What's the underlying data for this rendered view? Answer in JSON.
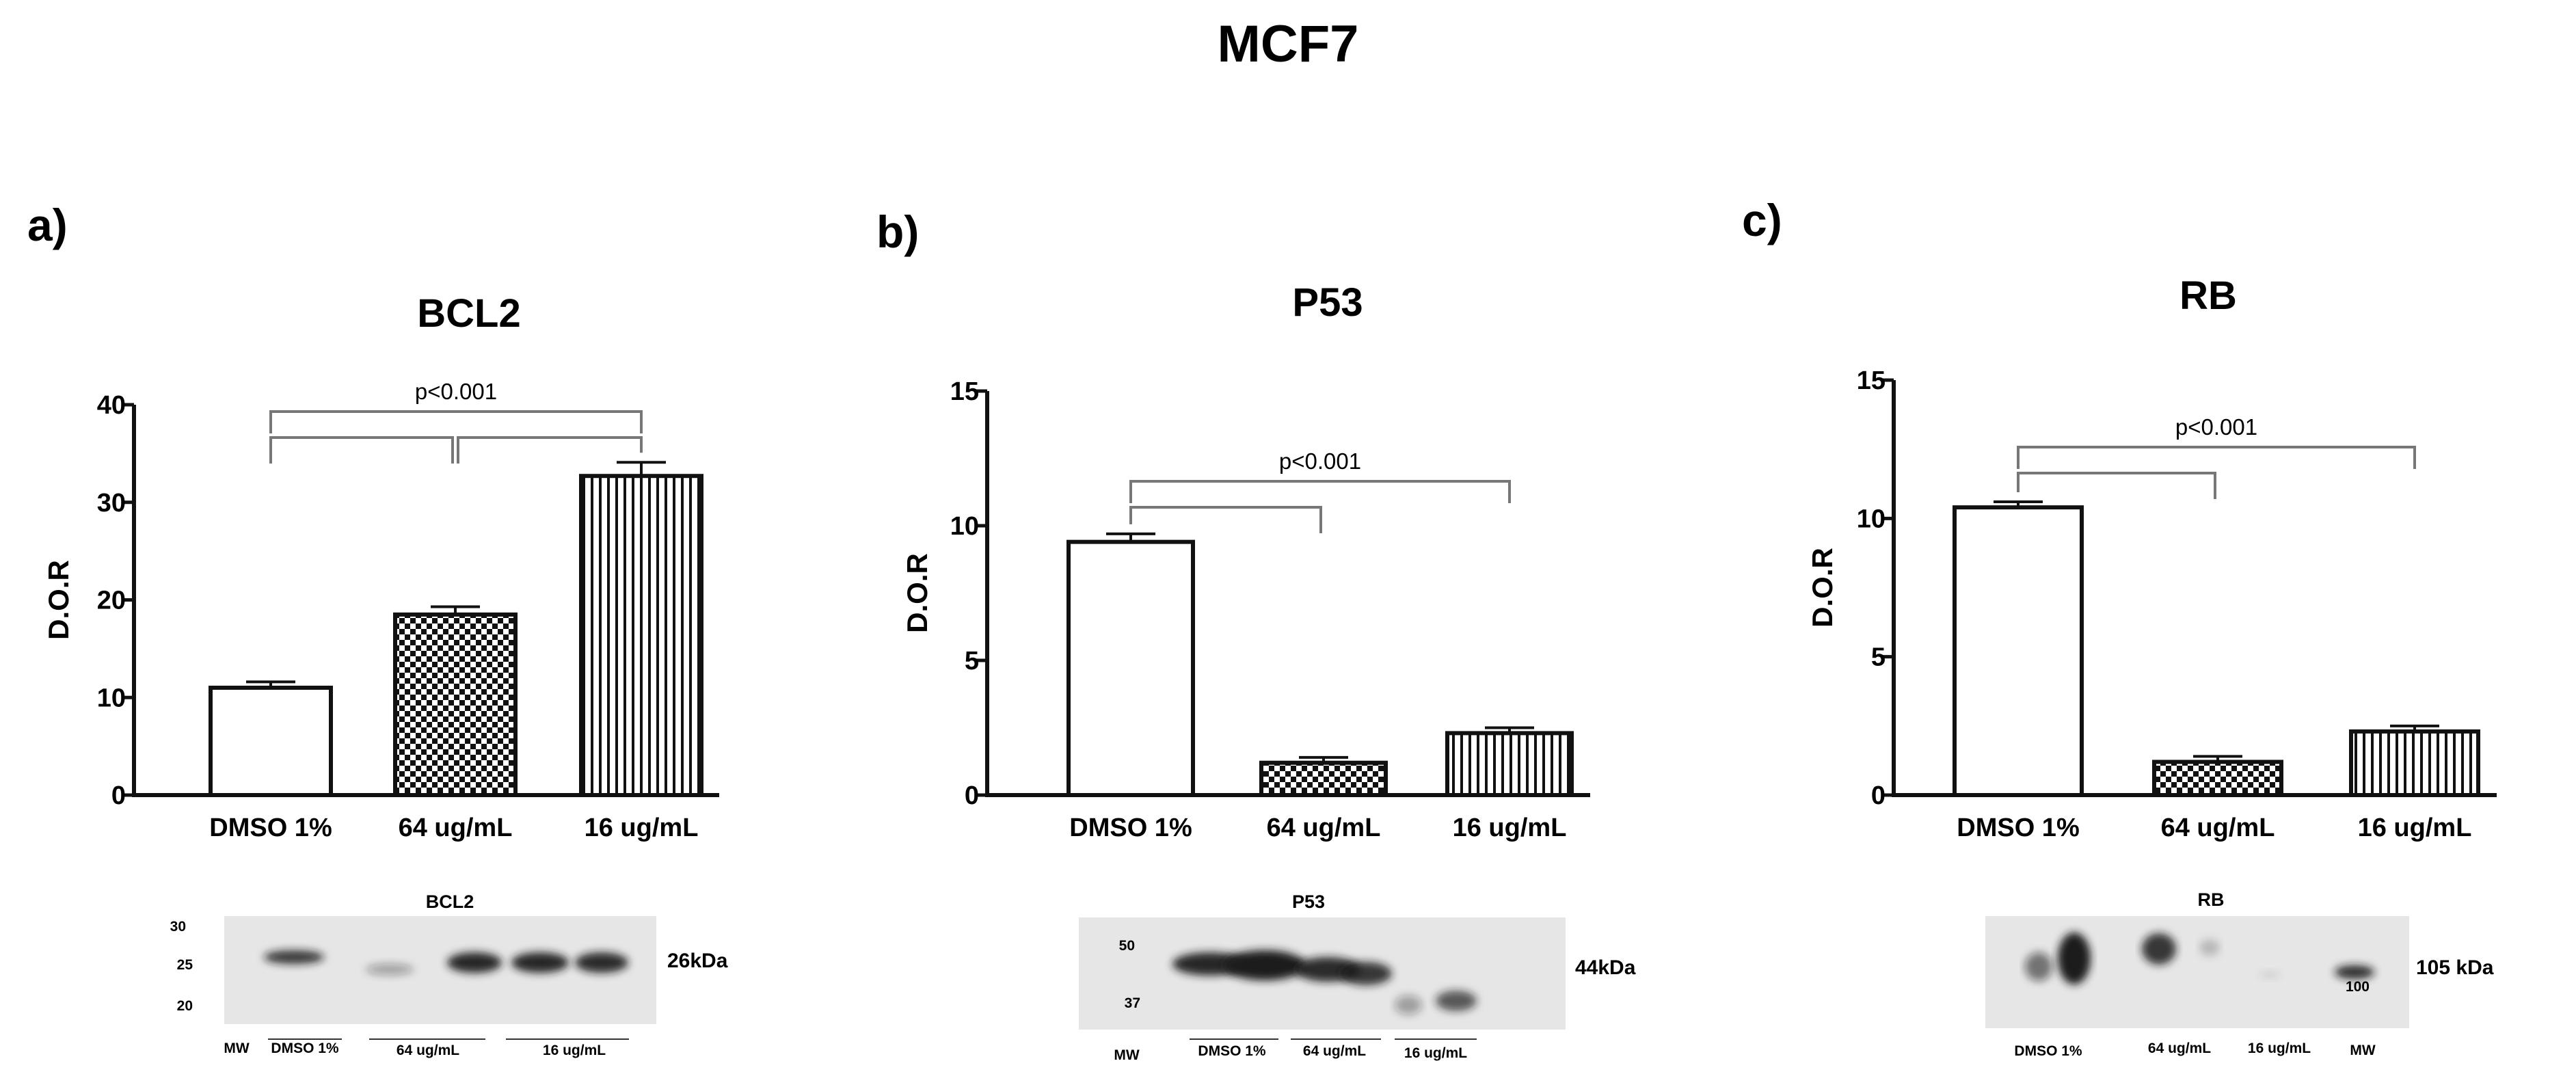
{
  "figure_title": "MCF7",
  "colors": {
    "bar_stroke": "#111111",
    "bracket": "#777777",
    "axis": "#111111",
    "blot_bg": "#e6e6e6",
    "band": "#1a1a1a"
  },
  "chart_data": [
    {
      "panel": "a)",
      "type": "bar",
      "title": "BCL2",
      "ylabel": "D.O.R",
      "ylim": [
        0,
        40
      ],
      "yticks": [
        0,
        10,
        20,
        30,
        40
      ],
      "categories": [
        "DMSO 1%",
        "64 ug/mL",
        "16 ug/mL"
      ],
      "values": [
        11.0,
        18.5,
        32.7
      ],
      "errors": [
        0.6,
        0.8,
        1.4
      ],
      "patterns": [
        "solid",
        "checker",
        "vlines"
      ],
      "significance": {
        "label": "p<0.001",
        "comparisons": [
          [
            0,
            1
          ],
          [
            1,
            2
          ],
          [
            0,
            2
          ]
        ]
      },
      "blot": {
        "title": "BCL2",
        "markers": [
          "30",
          "25",
          "20"
        ],
        "band_label": "26kDa",
        "lane_labels": [
          "MW",
          "DMSO 1%",
          "64 ug/mL",
          "16 ug/mL"
        ]
      }
    },
    {
      "panel": "b)",
      "type": "bar",
      "title": "P53",
      "ylabel": "D.O.R",
      "ylim": [
        0,
        15
      ],
      "yticks": [
        0,
        5,
        10,
        15
      ],
      "categories": [
        "DMSO 1%",
        "64 ug/mL",
        "16 ug/mL"
      ],
      "values": [
        9.4,
        1.2,
        2.3
      ],
      "errors": [
        0.3,
        0.2,
        0.2
      ],
      "patterns": [
        "solid",
        "checker",
        "vlines"
      ],
      "significance": {
        "label": "p<0.001",
        "comparisons": [
          [
            0,
            1
          ],
          [
            0,
            2
          ]
        ]
      },
      "blot": {
        "title": "P53",
        "markers": [
          "50",
          "37"
        ],
        "band_label": "44kDa",
        "lane_labels": [
          "MW",
          "DMSO 1%",
          "64 ug/mL",
          "16 ug/mL"
        ]
      }
    },
    {
      "panel": "c)",
      "type": "bar",
      "title": "RB",
      "ylabel": "D.O.R",
      "ylim": [
        0,
        15
      ],
      "yticks": [
        0,
        5,
        10,
        15
      ],
      "categories": [
        "DMSO 1%",
        "64 ug/mL",
        "16 ug/mL"
      ],
      "values": [
        10.4,
        1.2,
        2.3
      ],
      "errors": [
        0.2,
        0.2,
        0.2
      ],
      "patterns": [
        "solid",
        "checker",
        "vlines"
      ],
      "significance": {
        "label": "p<0.001",
        "comparisons": [
          [
            0,
            1
          ],
          [
            0,
            2
          ]
        ]
      },
      "blot": {
        "title": "RB",
        "markers": [
          "100"
        ],
        "band_label": "105 kDa",
        "lane_labels": [
          "DMSO 1%",
          "64 ug/mL",
          "16 ug/mL",
          "MW"
        ]
      }
    }
  ]
}
